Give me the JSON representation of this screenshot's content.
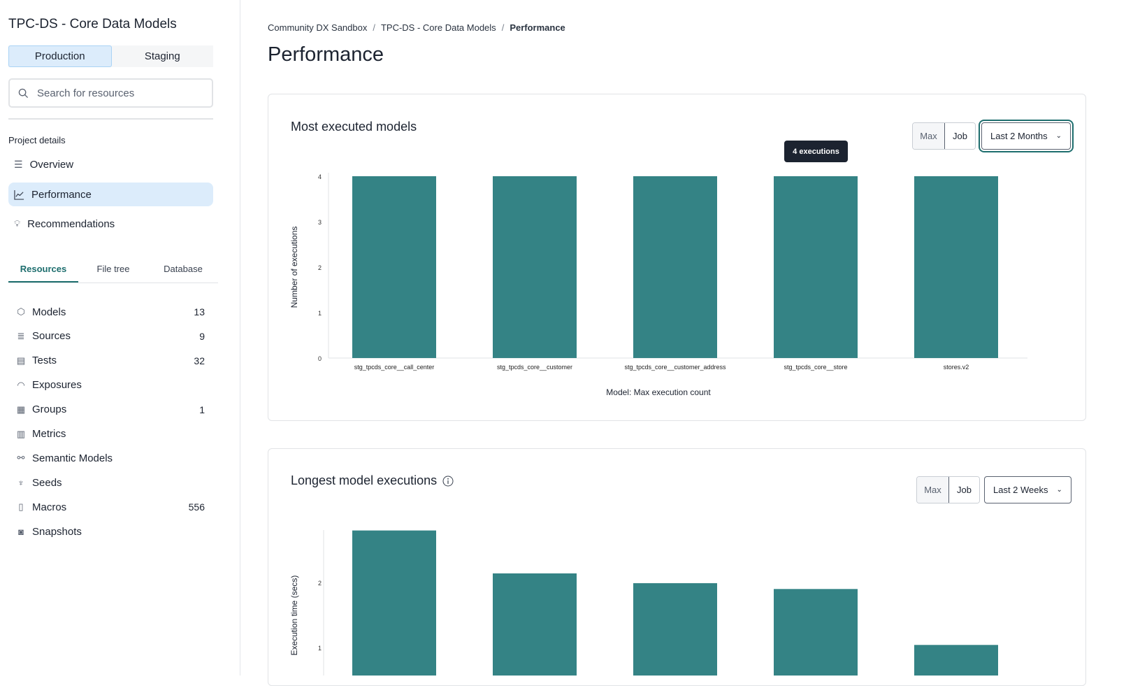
{
  "sidebar": {
    "project_title": "TPC-DS - Core Data Models",
    "env_tabs": [
      {
        "label": "Production",
        "active": true
      },
      {
        "label": "Staging",
        "active": false
      }
    ],
    "search_placeholder": "Search for resources",
    "project_details_label": "Project details",
    "nav": [
      {
        "label": "Overview",
        "icon": "list-icon"
      },
      {
        "label": "Performance",
        "icon": "line-chart-icon",
        "active": true
      },
      {
        "label": "Recommendations",
        "icon": "lightbulb-icon"
      }
    ],
    "tabs": [
      {
        "label": "Resources",
        "active": true
      },
      {
        "label": "File tree"
      },
      {
        "label": "Database"
      }
    ],
    "resources": [
      {
        "label": "Models",
        "count": "13",
        "icon": "cube-icon"
      },
      {
        "label": "Sources",
        "count": "9",
        "icon": "database-icon"
      },
      {
        "label": "Tests",
        "count": "32",
        "icon": "clipboard-icon"
      },
      {
        "label": "Exposures",
        "count": "",
        "icon": "gauge-icon"
      },
      {
        "label": "Groups",
        "count": "1",
        "icon": "grid-icon"
      },
      {
        "label": "Metrics",
        "count": "",
        "icon": "bar-chart-icon"
      },
      {
        "label": "Semantic Models",
        "count": "",
        "icon": "nodes-icon"
      },
      {
        "label": "Seeds",
        "count": "",
        "icon": "seedling-icon"
      },
      {
        "label": "Macros",
        "count": "556",
        "icon": "file-icon"
      },
      {
        "label": "Snapshots",
        "count": "",
        "icon": "camera-icon"
      }
    ]
  },
  "breadcrumb": [
    "Community DX Sandbox",
    "TPC-DS - Core Data Models",
    "Performance"
  ],
  "page_title": "Performance",
  "cards": [
    {
      "title": "Most executed models",
      "toggle": [
        "Max",
        "Job"
      ],
      "range": "Last 2 Months",
      "tooltip": "4 executions"
    },
    {
      "title": "Longest model executions",
      "toggle": [
        "Max",
        "Job"
      ],
      "range": "Last 2 Weeks"
    }
  ],
  "chart_data": [
    {
      "type": "bar",
      "title": "Most executed models",
      "categories": [
        "stg_tpcds_core__call_center",
        "stg_tpcds_core__customer",
        "stg_tpcds_core__customer_address",
        "stg_tpcds_core__store",
        "stores.v2"
      ],
      "values": [
        4,
        4,
        4,
        4,
        4
      ],
      "xlabel": "Model: Max execution count",
      "ylabel": "Number of executions",
      "ylim": [
        0,
        4
      ],
      "yticks": [
        "0",
        "1",
        "2",
        "3",
        "4"
      ],
      "color": "#348385"
    },
    {
      "type": "bar",
      "title": "Longest model executions",
      "values": [
        2.8,
        2.14,
        1.99,
        1.9,
        1.04
      ],
      "ylabel": "Execution time (secs)",
      "yticks": [
        "1",
        "2"
      ],
      "color": "#348385"
    }
  ]
}
